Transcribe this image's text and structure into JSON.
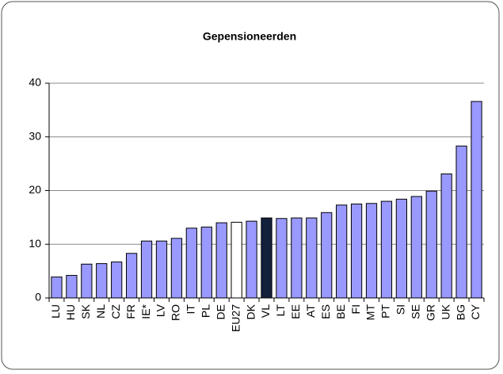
{
  "chart_data": {
    "type": "bar",
    "title": "Gepensioneerden",
    "categories": [
      "LU",
      "HU",
      "SK",
      "NL",
      "CZ",
      "FR",
      "IE*",
      "LV",
      "RO",
      "IT",
      "PL",
      "DE",
      "EU27",
      "DK",
      "VL",
      "LT",
      "EE",
      "AT",
      "ES",
      "BE",
      "FI",
      "MT",
      "PT",
      "SI",
      "SE",
      "GR",
      "UK",
      "BG",
      "CY"
    ],
    "values": [
      3.9,
      4.2,
      6.3,
      6.4,
      6.7,
      8.3,
      10.6,
      10.6,
      11.1,
      13.0,
      13.2,
      14.0,
      14.1,
      14.3,
      14.9,
      14.8,
      14.9,
      14.9,
      15.9,
      17.3,
      17.5,
      17.6,
      18.0,
      18.4,
      18.9,
      19.9,
      23.1,
      28.3,
      36.6
    ],
    "colors": [
      "#9999ff",
      "#9999ff",
      "#9999ff",
      "#9999ff",
      "#9999ff",
      "#9999ff",
      "#9999ff",
      "#9999ff",
      "#9999ff",
      "#9999ff",
      "#9999ff",
      "#9999ff",
      "#ffffff",
      "#9999ff",
      "#14213d",
      "#9999ff",
      "#9999ff",
      "#9999ff",
      "#9999ff",
      "#9999ff",
      "#9999ff",
      "#9999ff",
      "#9999ff",
      "#9999ff",
      "#9999ff",
      "#9999ff",
      "#9999ff",
      "#9999ff",
      "#9999ff"
    ],
    "ylim": [
      0,
      40
    ],
    "yticks": [
      0,
      10,
      20,
      30,
      40
    ],
    "grid": true
  }
}
